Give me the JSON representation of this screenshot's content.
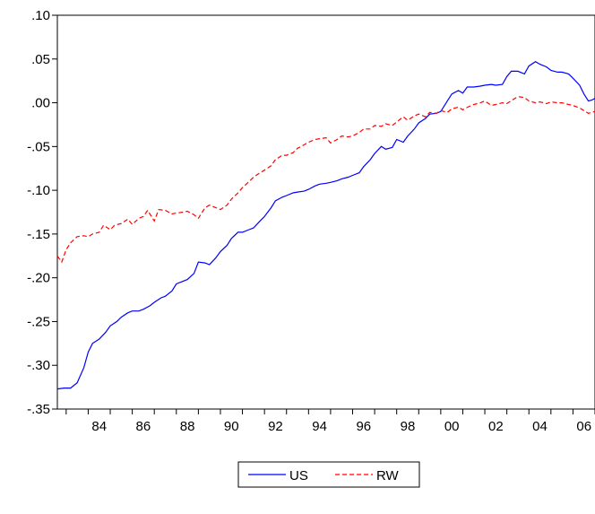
{
  "chart_data": {
    "type": "line",
    "title": "",
    "xlabel": "",
    "ylabel": "",
    "xlim": [
      1982.6,
      2007.0
    ],
    "ylim": [
      -0.35,
      0.1
    ],
    "grid": false,
    "legend_position": "bottom-center",
    "y_ticks": [
      {
        "value": 0.1,
        "label": ".10"
      },
      {
        "value": 0.05,
        "label": ".05"
      },
      {
        "value": 0.0,
        "label": ".00"
      },
      {
        "value": -0.05,
        "label": "-.05"
      },
      {
        "value": -0.1,
        "label": "-.10"
      },
      {
        "value": -0.15,
        "label": "-.15"
      },
      {
        "value": -0.2,
        "label": "-.20"
      },
      {
        "value": -0.25,
        "label": "-.25"
      },
      {
        "value": -0.3,
        "label": "-.30"
      },
      {
        "value": -0.35,
        "label": "-.35"
      }
    ],
    "x_ticks": [
      {
        "value": 1984,
        "label": "84"
      },
      {
        "value": 1986,
        "label": "86"
      },
      {
        "value": 1988,
        "label": "88"
      },
      {
        "value": 1990,
        "label": "90"
      },
      {
        "value": 1992,
        "label": "92"
      },
      {
        "value": 1994,
        "label": "94"
      },
      {
        "value": 1996,
        "label": "96"
      },
      {
        "value": 1998,
        "label": "98"
      },
      {
        "value": 2000,
        "label": "00"
      },
      {
        "value": 2002,
        "label": "02"
      },
      {
        "value": 2004,
        "label": "04"
      },
      {
        "value": 2006,
        "label": "06"
      }
    ],
    "series": [
      {
        "name": "US",
        "color": "#0000ff",
        "dash": "solid",
        "points": [
          [
            1982.6,
            -0.327
          ],
          [
            1982.9,
            -0.326
          ],
          [
            1983.2,
            -0.326
          ],
          [
            1983.5,
            -0.32
          ],
          [
            1983.8,
            -0.303
          ],
          [
            1984.0,
            -0.285
          ],
          [
            1984.2,
            -0.275
          ],
          [
            1984.5,
            -0.27
          ],
          [
            1984.8,
            -0.262
          ],
          [
            1985.0,
            -0.255
          ],
          [
            1985.3,
            -0.25
          ],
          [
            1985.5,
            -0.245
          ],
          [
            1985.8,
            -0.24
          ],
          [
            1986.0,
            -0.238
          ],
          [
            1986.3,
            -0.238
          ],
          [
            1986.5,
            -0.236
          ],
          [
            1986.8,
            -0.232
          ],
          [
            1987.0,
            -0.228
          ],
          [
            1987.3,
            -0.223
          ],
          [
            1987.5,
            -0.221
          ],
          [
            1987.8,
            -0.215
          ],
          [
            1988.0,
            -0.207
          ],
          [
            1988.3,
            -0.204
          ],
          [
            1988.5,
            -0.202
          ],
          [
            1988.8,
            -0.195
          ],
          [
            1989.0,
            -0.182
          ],
          [
            1989.3,
            -0.183
          ],
          [
            1989.5,
            -0.185
          ],
          [
            1989.8,
            -0.177
          ],
          [
            1990.0,
            -0.17
          ],
          [
            1990.3,
            -0.163
          ],
          [
            1990.5,
            -0.155
          ],
          [
            1990.8,
            -0.148
          ],
          [
            1991.0,
            -0.148
          ],
          [
            1991.3,
            -0.145
          ],
          [
            1991.5,
            -0.143
          ],
          [
            1991.8,
            -0.135
          ],
          [
            1992.0,
            -0.13
          ],
          [
            1992.3,
            -0.12
          ],
          [
            1992.5,
            -0.112
          ],
          [
            1992.8,
            -0.108
          ],
          [
            1993.0,
            -0.106
          ],
          [
            1993.3,
            -0.103
          ],
          [
            1993.5,
            -0.102
          ],
          [
            1993.8,
            -0.101
          ],
          [
            1994.0,
            -0.099
          ],
          [
            1994.3,
            -0.095
          ],
          [
            1994.5,
            -0.093
          ],
          [
            1994.8,
            -0.092
          ],
          [
            1995.0,
            -0.091
          ],
          [
            1995.3,
            -0.089
          ],
          [
            1995.5,
            -0.087
          ],
          [
            1995.8,
            -0.085
          ],
          [
            1996.0,
            -0.083
          ],
          [
            1996.3,
            -0.08
          ],
          [
            1996.5,
            -0.073
          ],
          [
            1996.8,
            -0.065
          ],
          [
            1997.0,
            -0.058
          ],
          [
            1997.3,
            -0.05
          ],
          [
            1997.5,
            -0.053
          ],
          [
            1997.8,
            -0.051
          ],
          [
            1998.0,
            -0.042
          ],
          [
            1998.3,
            -0.045
          ],
          [
            1998.5,
            -0.038
          ],
          [
            1998.8,
            -0.03
          ],
          [
            1999.0,
            -0.023
          ],
          [
            1999.3,
            -0.018
          ],
          [
            1999.5,
            -0.013
          ],
          [
            1999.8,
            -0.012
          ],
          [
            2000.0,
            -0.01
          ],
          [
            2000.3,
            0.002
          ],
          [
            2000.5,
            0.01
          ],
          [
            2000.8,
            0.014
          ],
          [
            2001.0,
            0.011
          ],
          [
            2001.2,
            0.018
          ],
          [
            2001.5,
            0.018
          ],
          [
            2001.8,
            0.019
          ],
          [
            2002.0,
            0.02
          ],
          [
            2002.3,
            0.021
          ],
          [
            2002.5,
            0.02
          ],
          [
            2002.8,
            0.021
          ],
          [
            2003.0,
            0.03
          ],
          [
            2003.2,
            0.036
          ],
          [
            2003.5,
            0.036
          ],
          [
            2003.8,
            0.033
          ],
          [
            2004.0,
            0.042
          ],
          [
            2004.3,
            0.047
          ],
          [
            2004.5,
            0.044
          ],
          [
            2004.8,
            0.041
          ],
          [
            2005.0,
            0.037
          ],
          [
            2005.3,
            0.035
          ],
          [
            2005.5,
            0.035
          ],
          [
            2005.8,
            0.033
          ],
          [
            2006.0,
            0.028
          ],
          [
            2006.3,
            0.02
          ],
          [
            2006.5,
            0.01
          ],
          [
            2006.7,
            0.002
          ],
          [
            2006.85,
            0.003
          ],
          [
            2007.0,
            0.005
          ]
        ]
      },
      {
        "name": "RW",
        "color": "#ff0000",
        "dash": "dashed",
        "points": [
          [
            1982.6,
            -0.175
          ],
          [
            1982.8,
            -0.182
          ],
          [
            1983.0,
            -0.168
          ],
          [
            1983.2,
            -0.16
          ],
          [
            1983.5,
            -0.153
          ],
          [
            1983.8,
            -0.152
          ],
          [
            1984.0,
            -0.153
          ],
          [
            1984.2,
            -0.15
          ],
          [
            1984.5,
            -0.148
          ],
          [
            1984.7,
            -0.14
          ],
          [
            1985.0,
            -0.145
          ],
          [
            1985.2,
            -0.14
          ],
          [
            1985.5,
            -0.138
          ],
          [
            1985.8,
            -0.133
          ],
          [
            1986.0,
            -0.139
          ],
          [
            1986.3,
            -0.132
          ],
          [
            1986.5,
            -0.13
          ],
          [
            1986.7,
            -0.123
          ],
          [
            1987.0,
            -0.135
          ],
          [
            1987.2,
            -0.122
          ],
          [
            1987.5,
            -0.123
          ],
          [
            1987.8,
            -0.127
          ],
          [
            1988.0,
            -0.126
          ],
          [
            1988.3,
            -0.125
          ],
          [
            1988.5,
            -0.124
          ],
          [
            1988.8,
            -0.128
          ],
          [
            1989.0,
            -0.132
          ],
          [
            1989.3,
            -0.12
          ],
          [
            1989.5,
            -0.117
          ],
          [
            1989.8,
            -0.12
          ],
          [
            1990.0,
            -0.122
          ],
          [
            1990.3,
            -0.117
          ],
          [
            1990.5,
            -0.11
          ],
          [
            1990.8,
            -0.103
          ],
          [
            1991.0,
            -0.097
          ],
          [
            1991.3,
            -0.09
          ],
          [
            1991.5,
            -0.085
          ],
          [
            1991.8,
            -0.08
          ],
          [
            1992.0,
            -0.077
          ],
          [
            1992.3,
            -0.072
          ],
          [
            1992.5,
            -0.065
          ],
          [
            1992.8,
            -0.06
          ],
          [
            1993.0,
            -0.06
          ],
          [
            1993.3,
            -0.057
          ],
          [
            1993.5,
            -0.052
          ],
          [
            1993.8,
            -0.048
          ],
          [
            1994.0,
            -0.045
          ],
          [
            1994.3,
            -0.042
          ],
          [
            1994.5,
            -0.041
          ],
          [
            1994.8,
            -0.04
          ],
          [
            1995.0,
            -0.046
          ],
          [
            1995.3,
            -0.042
          ],
          [
            1995.5,
            -0.038
          ],
          [
            1995.8,
            -0.039
          ],
          [
            1996.0,
            -0.038
          ],
          [
            1996.3,
            -0.034
          ],
          [
            1996.5,
            -0.03
          ],
          [
            1996.8,
            -0.03
          ],
          [
            1997.0,
            -0.026
          ],
          [
            1997.3,
            -0.027
          ],
          [
            1997.5,
            -0.024
          ],
          [
            1997.8,
            -0.026
          ],
          [
            1998.0,
            -0.022
          ],
          [
            1998.3,
            -0.016
          ],
          [
            1998.5,
            -0.02
          ],
          [
            1998.8,
            -0.015
          ],
          [
            1999.0,
            -0.013
          ],
          [
            1999.3,
            -0.016
          ],
          [
            1999.5,
            -0.011
          ],
          [
            1999.8,
            -0.012
          ],
          [
            2000.0,
            -0.009
          ],
          [
            2000.3,
            -0.011
          ],
          [
            2000.5,
            -0.007
          ],
          [
            2000.8,
            -0.005
          ],
          [
            2001.0,
            -0.008
          ],
          [
            2001.3,
            -0.004
          ],
          [
            2001.5,
            -0.002
          ],
          [
            2001.8,
            0.0
          ],
          [
            2002.0,
            0.002
          ],
          [
            2002.3,
            -0.003
          ],
          [
            2002.5,
            -0.002
          ],
          [
            2002.8,
            0.0
          ],
          [
            2003.0,
            -0.001
          ],
          [
            2003.3,
            0.004
          ],
          [
            2003.5,
            0.007
          ],
          [
            2003.8,
            0.006
          ],
          [
            2004.0,
            0.002
          ],
          [
            2004.3,
            0.0
          ],
          [
            2004.5,
            0.001
          ],
          [
            2004.8,
            -0.001
          ],
          [
            2005.0,
            0.001
          ],
          [
            2005.3,
            0.0
          ],
          [
            2005.5,
            0.0
          ],
          [
            2005.8,
            -0.002
          ],
          [
            2006.0,
            -0.003
          ],
          [
            2006.3,
            -0.006
          ],
          [
            2006.5,
            -0.009
          ],
          [
            2006.7,
            -0.012
          ],
          [
            2007.0,
            -0.01
          ]
        ]
      }
    ]
  }
}
